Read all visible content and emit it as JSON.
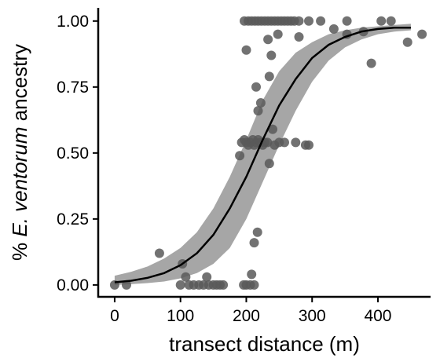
{
  "chart_data": {
    "type": "scatter",
    "title": "",
    "xlabel": "transect distance (m)",
    "ylabel_prefix": "% ",
    "ylabel_italic": "E. ventorum",
    "ylabel_suffix": " ancestry",
    "xlim": [
      -25,
      480
    ],
    "ylim": [
      -0.045,
      1.05
    ],
    "x_ticks": [
      0,
      100,
      200,
      300,
      400
    ],
    "x_tick_labels": [
      "0",
      "100",
      "200",
      "300",
      "400"
    ],
    "y_ticks": [
      0,
      0.25,
      0.5,
      0.75,
      1.0
    ],
    "y_tick_labels": [
      "0.00",
      "0.25",
      "0.50",
      "0.75",
      "1.00"
    ],
    "grid": false,
    "legend": "none",
    "colors": {
      "points": "#595959",
      "band": "#a6a6a6",
      "line": "#000000",
      "axis": "#000000"
    },
    "points": [
      {
        "x": 0,
        "y": 0.0
      },
      {
        "x": 18,
        "y": 0.0
      },
      {
        "x": 68,
        "y": 0.12
      },
      {
        "x": 100,
        "y": 0.0
      },
      {
        "x": 103,
        "y": 0.08
      },
      {
        "x": 108,
        "y": 0.03
      },
      {
        "x": 113,
        "y": 0.0
      },
      {
        "x": 120,
        "y": 0.0
      },
      {
        "x": 128,
        "y": 0.0
      },
      {
        "x": 135,
        "y": 0.0
      },
      {
        "x": 140,
        "y": 0.03
      },
      {
        "x": 143,
        "y": 0.0
      },
      {
        "x": 150,
        "y": 0.0
      },
      {
        "x": 155,
        "y": 0.0
      },
      {
        "x": 160,
        "y": 0.0
      },
      {
        "x": 165,
        "y": 0.0
      },
      {
        "x": 196,
        "y": 0.0
      },
      {
        "x": 200,
        "y": 0.0
      },
      {
        "x": 206,
        "y": 0.0
      },
      {
        "x": 208,
        "y": 0.04
      },
      {
        "x": 212,
        "y": 0.0
      },
      {
        "x": 212,
        "y": 0.16
      },
      {
        "x": 217,
        "y": 0.2
      },
      {
        "x": 190,
        "y": 0.49
      },
      {
        "x": 193,
        "y": 0.54
      },
      {
        "x": 197,
        "y": 0.55
      },
      {
        "x": 200,
        "y": 0.54
      },
      {
        "x": 203,
        "y": 0.53
      },
      {
        "x": 206,
        "y": 0.54
      },
      {
        "x": 210,
        "y": 0.55
      },
      {
        "x": 212,
        "y": 0.53
      },
      {
        "x": 215,
        "y": 0.54
      },
      {
        "x": 218,
        "y": 0.55
      },
      {
        "x": 222,
        "y": 0.54
      },
      {
        "x": 225,
        "y": 0.53
      },
      {
        "x": 228,
        "y": 0.54
      },
      {
        "x": 232,
        "y": 0.54
      },
      {
        "x": 235,
        "y": 0.46
      },
      {
        "x": 240,
        "y": 0.59
      },
      {
        "x": 243,
        "y": 0.53
      },
      {
        "x": 250,
        "y": 0.54
      },
      {
        "x": 258,
        "y": 0.54
      },
      {
        "x": 275,
        "y": 0.54
      },
      {
        "x": 290,
        "y": 0.53
      },
      {
        "x": 295,
        "y": 0.53
      },
      {
        "x": 218,
        "y": 0.66
      },
      {
        "x": 222,
        "y": 0.69
      },
      {
        "x": 215,
        "y": 0.75
      },
      {
        "x": 235,
        "y": 0.79
      },
      {
        "x": 197,
        "y": 1.0
      },
      {
        "x": 203,
        "y": 1.0
      },
      {
        "x": 208,
        "y": 1.0
      },
      {
        "x": 213,
        "y": 1.0
      },
      {
        "x": 218,
        "y": 1.0
      },
      {
        "x": 223,
        "y": 1.0
      },
      {
        "x": 228,
        "y": 1.0
      },
      {
        "x": 233,
        "y": 1.0
      },
      {
        "x": 238,
        "y": 1.0
      },
      {
        "x": 243,
        "y": 1.0
      },
      {
        "x": 248,
        "y": 1.0
      },
      {
        "x": 253,
        "y": 1.0
      },
      {
        "x": 258,
        "y": 1.0
      },
      {
        "x": 263,
        "y": 1.0
      },
      {
        "x": 268,
        "y": 1.0
      },
      {
        "x": 273,
        "y": 1.0
      },
      {
        "x": 280,
        "y": 1.0
      },
      {
        "x": 295,
        "y": 1.0
      },
      {
        "x": 313,
        "y": 1.0
      },
      {
        "x": 353,
        "y": 1.0
      },
      {
        "x": 405,
        "y": 1.0
      },
      {
        "x": 420,
        "y": 1.0
      },
      {
        "x": 200,
        "y": 0.89
      },
      {
        "x": 233,
        "y": 0.93
      },
      {
        "x": 238,
        "y": 0.87
      },
      {
        "x": 248,
        "y": 0.95
      },
      {
        "x": 280,
        "y": 0.94
      },
      {
        "x": 333,
        "y": 0.97
      },
      {
        "x": 353,
        "y": 0.95
      },
      {
        "x": 378,
        "y": 0.96
      },
      {
        "x": 390,
        "y": 0.84
      },
      {
        "x": 445,
        "y": 0.92
      },
      {
        "x": 467,
        "y": 0.95
      }
    ],
    "fit": {
      "x": [
        0,
        25,
        50,
        75,
        100,
        125,
        150,
        175,
        200,
        225,
        250,
        275,
        300,
        325,
        350,
        375,
        400,
        425,
        450
      ],
      "y": [
        0.01,
        0.016,
        0.027,
        0.045,
        0.075,
        0.12,
        0.19,
        0.29,
        0.41,
        0.55,
        0.68,
        0.78,
        0.86,
        0.91,
        0.94,
        0.96,
        0.97,
        0.975,
        0.975
      ],
      "lower": [
        0.0,
        0.003,
        0.007,
        0.013,
        0.025,
        0.045,
        0.08,
        0.14,
        0.25,
        0.39,
        0.53,
        0.66,
        0.77,
        0.85,
        0.9,
        0.93,
        0.95,
        0.96,
        0.965
      ],
      "upper": [
        0.035,
        0.05,
        0.07,
        0.1,
        0.14,
        0.2,
        0.29,
        0.41,
        0.55,
        0.7,
        0.81,
        0.88,
        0.92,
        0.95,
        0.965,
        0.975,
        0.98,
        0.985,
        0.99
      ]
    }
  }
}
